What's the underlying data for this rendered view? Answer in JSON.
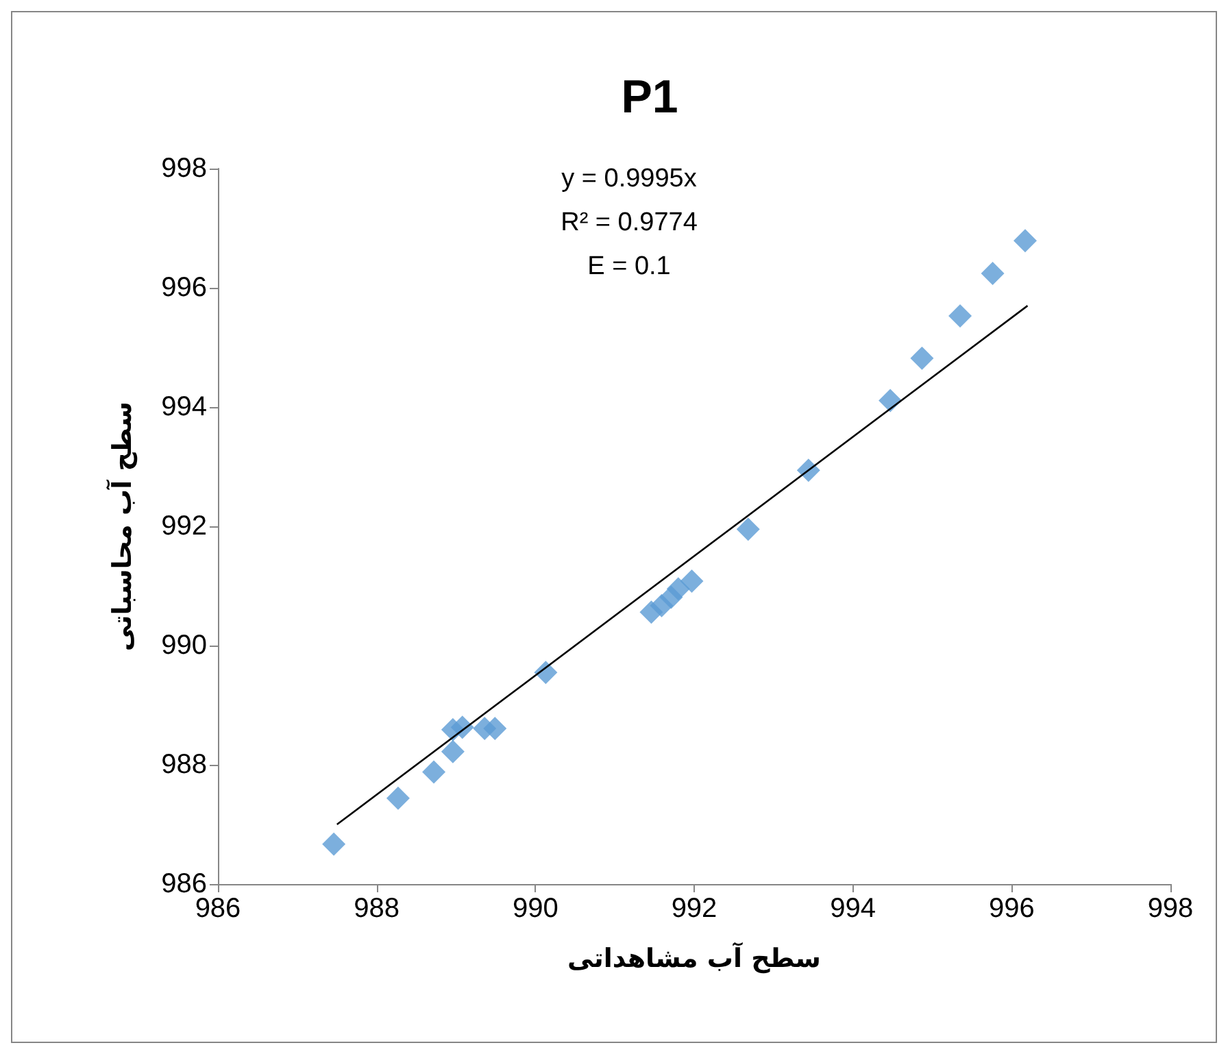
{
  "chart_data": {
    "type": "scatter",
    "title": "P1",
    "xlabel": "سطح آب مشاهداتی",
    "ylabel": "سطح آب محاسباتی",
    "annotations": [
      "y = 0.9995x",
      "R² = 0.9774",
      "E = 0.1"
    ],
    "xlim": [
      986,
      998
    ],
    "xticks": [
      986,
      988,
      990,
      992,
      994,
      996,
      998
    ],
    "ylim": [
      986,
      998
    ],
    "yticks": [
      986,
      988,
      990,
      992,
      994,
      996,
      998
    ],
    "grid": false,
    "marker": "diamond",
    "series": [
      {
        "color": "#5b9bd5",
        "x": [
          987.46,
          988.27,
          988.72,
          988.96,
          988.96,
          989.08,
          989.36,
          989.49,
          990.13,
          991.46,
          991.59,
          991.71,
          991.8,
          991.97,
          992.68,
          993.44,
          994.47,
          994.87,
          995.35,
          995.76,
          996.17
        ],
        "values": [
          986.67,
          987.44,
          987.88,
          988.22,
          988.59,
          988.63,
          988.61,
          988.61,
          989.55,
          990.56,
          990.67,
          990.81,
          990.95,
          991.08,
          991.95,
          992.94,
          994.11,
          994.82,
          995.53,
          996.24,
          996.79
        ]
      },
      {
        "type": "line",
        "color": "#000000",
        "line_style": "solid",
        "marker": "none",
        "x": [
          987.5,
          996.2
        ],
        "values": [
          987.0,
          995.7
        ]
      }
    ]
  }
}
